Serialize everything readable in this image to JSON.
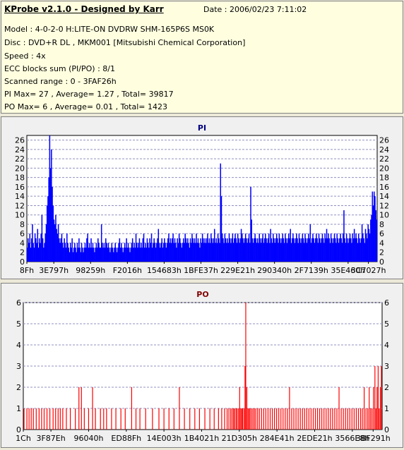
{
  "info": {
    "title": "KProbe v2.1.0 - Designed by Karr",
    "date": "Date : 2006/02/23 7:11:02",
    "lines": [
      "Model : 4-0-2-0 H:LITE-ON DVDRW SHM-165P6S MS0K",
      "Disc : DVD+R DL , MKM001 [Mitsubishi Chemical Corporation]",
      "Speed : 4x",
      "ECC blocks sum (PI/PO) : 8/1",
      "Scanned range : 0 - 3FAF26h",
      "PI Max= 27 , Average= 1.27 , Total= 39817",
      "PO Max= 6 , Average= 0.01 , Total= 1423"
    ]
  },
  "colors": {
    "pi_series": "#0000ff",
    "po_series": "#ff0000",
    "pi_title": "#000080",
    "po_title": "#800000",
    "info_background": "#ffffe0",
    "plot_background": "#ffffff",
    "grid": "#9090c0"
  },
  "chart_data": [
    {
      "type": "bar",
      "title": "PI",
      "xlabel": "",
      "ylabel": "",
      "ylim": [
        0,
        27
      ],
      "yticks": [
        0,
        2,
        4,
        6,
        8,
        10,
        12,
        14,
        16,
        18,
        20,
        22,
        24,
        26
      ],
      "grid": true,
      "x_tick_labels": [
        "8Fh",
        "3E797h",
        "98259h",
        "F2016h",
        "154683h",
        "1BFE37h",
        "229E21h",
        "290340h",
        "2F7139h",
        "35E460h",
        "3C7027h"
      ],
      "x_tick_positions": [
        0.0,
        0.077,
        0.182,
        0.287,
        0.392,
        0.497,
        0.602,
        0.707,
        0.812,
        0.917,
        0.975
      ],
      "series": [
        {
          "values": [
            3,
            5,
            4,
            6,
            3,
            5,
            8,
            4,
            3,
            6,
            5,
            4,
            7,
            3,
            5,
            4,
            6,
            10,
            5,
            3,
            4,
            6,
            8,
            12,
            14,
            18,
            27,
            20,
            24,
            16,
            12,
            9,
            8,
            10,
            7,
            6,
            8,
            5,
            4,
            5,
            6,
            4,
            3,
            5,
            4,
            3,
            6,
            4,
            3,
            2,
            4,
            3,
            5,
            2,
            3,
            4,
            3,
            2,
            4,
            3,
            5,
            3,
            2,
            4,
            3,
            2,
            3,
            4,
            3,
            5,
            6,
            3,
            4,
            3,
            5,
            3,
            4,
            3,
            2,
            3,
            4,
            3,
            5,
            4,
            3,
            3,
            8,
            4,
            3,
            4,
            3,
            5,
            4,
            3,
            4,
            3,
            2,
            3,
            4,
            3,
            2,
            3,
            4,
            3,
            2,
            3,
            4,
            5,
            3,
            4,
            3,
            2,
            3,
            4,
            3,
            5,
            3,
            4,
            3,
            2,
            3,
            4,
            5,
            3,
            4,
            3,
            6,
            4,
            3,
            4,
            5,
            3,
            4,
            3,
            5,
            6,
            3,
            4,
            3,
            5,
            4,
            3,
            5,
            4,
            6,
            3,
            4,
            5,
            4,
            3,
            4,
            5,
            7,
            4,
            3,
            4,
            5,
            3,
            4,
            5,
            4,
            3,
            4,
            5,
            6,
            4,
            5,
            4,
            5,
            6,
            4,
            5,
            4,
            3,
            5,
            4,
            6,
            5,
            4,
            3,
            4,
            5,
            4,
            6,
            5,
            4,
            5,
            4,
            3,
            5,
            4,
            6,
            5,
            4,
            5,
            4,
            6,
            4,
            5,
            4,
            3,
            5,
            4,
            6,
            5,
            4,
            5,
            4,
            5,
            6,
            4,
            5,
            4,
            6,
            5,
            4,
            5,
            7,
            4,
            5,
            4,
            6,
            5,
            4,
            21,
            14,
            6,
            5,
            4,
            6,
            5,
            4,
            5,
            4,
            6,
            5,
            4,
            5,
            6,
            4,
            5,
            6,
            5,
            4,
            6,
            5,
            4,
            5,
            7,
            6,
            5,
            4,
            5,
            6,
            5,
            4,
            5,
            6,
            4,
            16,
            9,
            5,
            4,
            5,
            6,
            5,
            4,
            5,
            4,
            6,
            5,
            4,
            5,
            6,
            4,
            5,
            6,
            5,
            4,
            5,
            6,
            4,
            7,
            5,
            4,
            6,
            5,
            4,
            5,
            6,
            5,
            4,
            6,
            5,
            4,
            5,
            6,
            5,
            4,
            6,
            5,
            4,
            5,
            6,
            5,
            7,
            4,
            5,
            6,
            5,
            4,
            5,
            6,
            5,
            4,
            6,
            5,
            4,
            5,
            6,
            5,
            4,
            6,
            5,
            4,
            5,
            6,
            5,
            8,
            4,
            5,
            6,
            5,
            4,
            5,
            6,
            5,
            4,
            6,
            5,
            4,
            5,
            6,
            5,
            4,
            6,
            5,
            7,
            5,
            6,
            5,
            4,
            6,
            5,
            4,
            5,
            6,
            5,
            4,
            6,
            5,
            4,
            5,
            6,
            5,
            4,
            6,
            11,
            5,
            4,
            6,
            5,
            4,
            5,
            6,
            5,
            4,
            6,
            5,
            7,
            5,
            6,
            5,
            4,
            6,
            5,
            4,
            5,
            8,
            6,
            5,
            4,
            7,
            6,
            5,
            8,
            7,
            6,
            9,
            10,
            15,
            12,
            15,
            14,
            11,
            9
          ]
        }
      ]
    },
    {
      "type": "bar",
      "title": "PO",
      "xlabel": "",
      "ylabel": "",
      "ylim": [
        0,
        6
      ],
      "yticks": [
        0,
        1,
        2,
        3,
        4,
        5,
        6
      ],
      "grid": true,
      "x_tick_labels": [
        "1Ch",
        "3F87Eh",
        "96040h",
        "ED88Fh",
        "14E003h",
        "1B4021h",
        "21D305h",
        "284E41h",
        "2EDE21h",
        "3566E8h",
        "3BF291h"
      ],
      "x_tick_positions": [
        0.0,
        0.077,
        0.182,
        0.287,
        0.392,
        0.497,
        0.602,
        0.707,
        0.812,
        0.917,
        0.975
      ],
      "series": [
        {
          "points": [
            [
              0.2,
              1
            ],
            [
              1.0,
              1
            ],
            [
              1.6,
              1
            ],
            [
              2.2,
              1
            ],
            [
              2.8,
              1
            ],
            [
              3.6,
              1
            ],
            [
              4.4,
              1
            ],
            [
              5.1,
              1
            ],
            [
              5.8,
              1
            ],
            [
              6.6,
              1
            ],
            [
              7.4,
              1
            ],
            [
              8.3,
              1
            ],
            [
              9.0,
              1
            ],
            [
              9.7,
              1
            ],
            [
              10.3,
              1
            ],
            [
              11.0,
              1
            ],
            [
              12.0,
              1
            ],
            [
              13.1,
              1
            ],
            [
              14.5,
              1
            ],
            [
              15.5,
              2
            ],
            [
              16.2,
              2
            ],
            [
              17.0,
              1
            ],
            [
              18.2,
              1
            ],
            [
              19.3,
              2
            ],
            [
              20.1,
              1
            ],
            [
              21.5,
              1
            ],
            [
              22.4,
              1
            ],
            [
              23.2,
              1
            ],
            [
              24.6,
              1
            ],
            [
              25.8,
              1
            ],
            [
              27.2,
              1
            ],
            [
              28.4,
              1
            ],
            [
              30.2,
              2
            ],
            [
              31.4,
              1
            ],
            [
              32.5,
              1
            ],
            [
              34.1,
              1
            ],
            [
              36.0,
              1
            ],
            [
              37.8,
              1
            ],
            [
              39.2,
              1
            ],
            [
              40.6,
              1
            ],
            [
              42.0,
              1
            ],
            [
              43.5,
              2
            ],
            [
              44.9,
              1
            ],
            [
              46.4,
              1
            ],
            [
              47.8,
              1
            ],
            [
              49.1,
              1
            ],
            [
              50.6,
              1
            ],
            [
              52.0,
              1
            ],
            [
              53.2,
              1
            ],
            [
              54.4,
              1
            ],
            [
              55.3,
              1
            ],
            [
              56.1,
              1
            ],
            [
              56.8,
              1
            ],
            [
              57.3,
              1
            ],
            [
              57.8,
              1
            ],
            [
              58.2,
              1
            ],
            [
              58.6,
              1
            ],
            [
              58.9,
              1
            ],
            [
              59.3,
              1
            ],
            [
              59.6,
              1
            ],
            [
              60.0,
              1
            ],
            [
              60.3,
              2
            ],
            [
              60.6,
              1
            ],
            [
              60.9,
              1
            ],
            [
              61.1,
              1
            ],
            [
              61.5,
              1
            ],
            [
              61.8,
              3
            ],
            [
              62.0,
              6
            ],
            [
              62.3,
              2
            ],
            [
              62.6,
              1
            ],
            [
              62.9,
              1
            ],
            [
              63.2,
              1
            ],
            [
              63.6,
              1
            ],
            [
              64.0,
              1
            ],
            [
              64.4,
              1
            ],
            [
              64.8,
              1
            ],
            [
              65.3,
              1
            ],
            [
              65.8,
              1
            ],
            [
              66.4,
              1
            ],
            [
              67.0,
              1
            ],
            [
              67.6,
              1
            ],
            [
              68.2,
              1
            ],
            [
              68.8,
              1
            ],
            [
              69.4,
              1
            ],
            [
              70.0,
              1
            ],
            [
              70.6,
              1
            ],
            [
              71.2,
              1
            ],
            [
              71.8,
              1
            ],
            [
              72.4,
              1
            ],
            [
              73.0,
              1
            ],
            [
              73.6,
              1
            ],
            [
              74.2,
              2
            ],
            [
              74.8,
              1
            ],
            [
              75.4,
              1
            ],
            [
              76.0,
              1
            ],
            [
              76.6,
              1
            ],
            [
              77.2,
              1
            ],
            [
              77.8,
              1
            ],
            [
              78.4,
              1
            ],
            [
              79.0,
              1
            ],
            [
              79.6,
              1
            ],
            [
              80.2,
              1
            ],
            [
              80.8,
              1
            ],
            [
              81.4,
              1
            ],
            [
              82.0,
              1
            ],
            [
              82.6,
              1
            ],
            [
              83.2,
              1
            ],
            [
              83.8,
              1
            ],
            [
              84.4,
              1
            ],
            [
              85.0,
              1
            ],
            [
              85.6,
              1
            ],
            [
              86.2,
              1
            ],
            [
              86.8,
              1
            ],
            [
              87.4,
              1
            ],
            [
              88.0,
              2
            ],
            [
              88.6,
              1
            ],
            [
              89.2,
              1
            ],
            [
              89.8,
              1
            ],
            [
              90.4,
              1
            ],
            [
              91.0,
              1
            ],
            [
              91.6,
              1
            ],
            [
              92.2,
              1
            ],
            [
              92.8,
              1
            ],
            [
              93.4,
              1
            ],
            [
              94.0,
              1
            ],
            [
              94.5,
              1
            ],
            [
              95.0,
              2
            ],
            [
              95.5,
              1
            ],
            [
              96.0,
              1
            ],
            [
              96.4,
              2
            ],
            [
              96.8,
              1
            ],
            [
              97.2,
              1
            ],
            [
              97.6,
              2
            ],
            [
              98.0,
              3
            ],
            [
              98.3,
              1
            ],
            [
              98.6,
              2
            ],
            [
              98.9,
              3
            ],
            [
              99.2,
              1
            ],
            [
              99.5,
              2
            ],
            [
              99.8,
              3
            ]
          ]
        }
      ]
    }
  ]
}
